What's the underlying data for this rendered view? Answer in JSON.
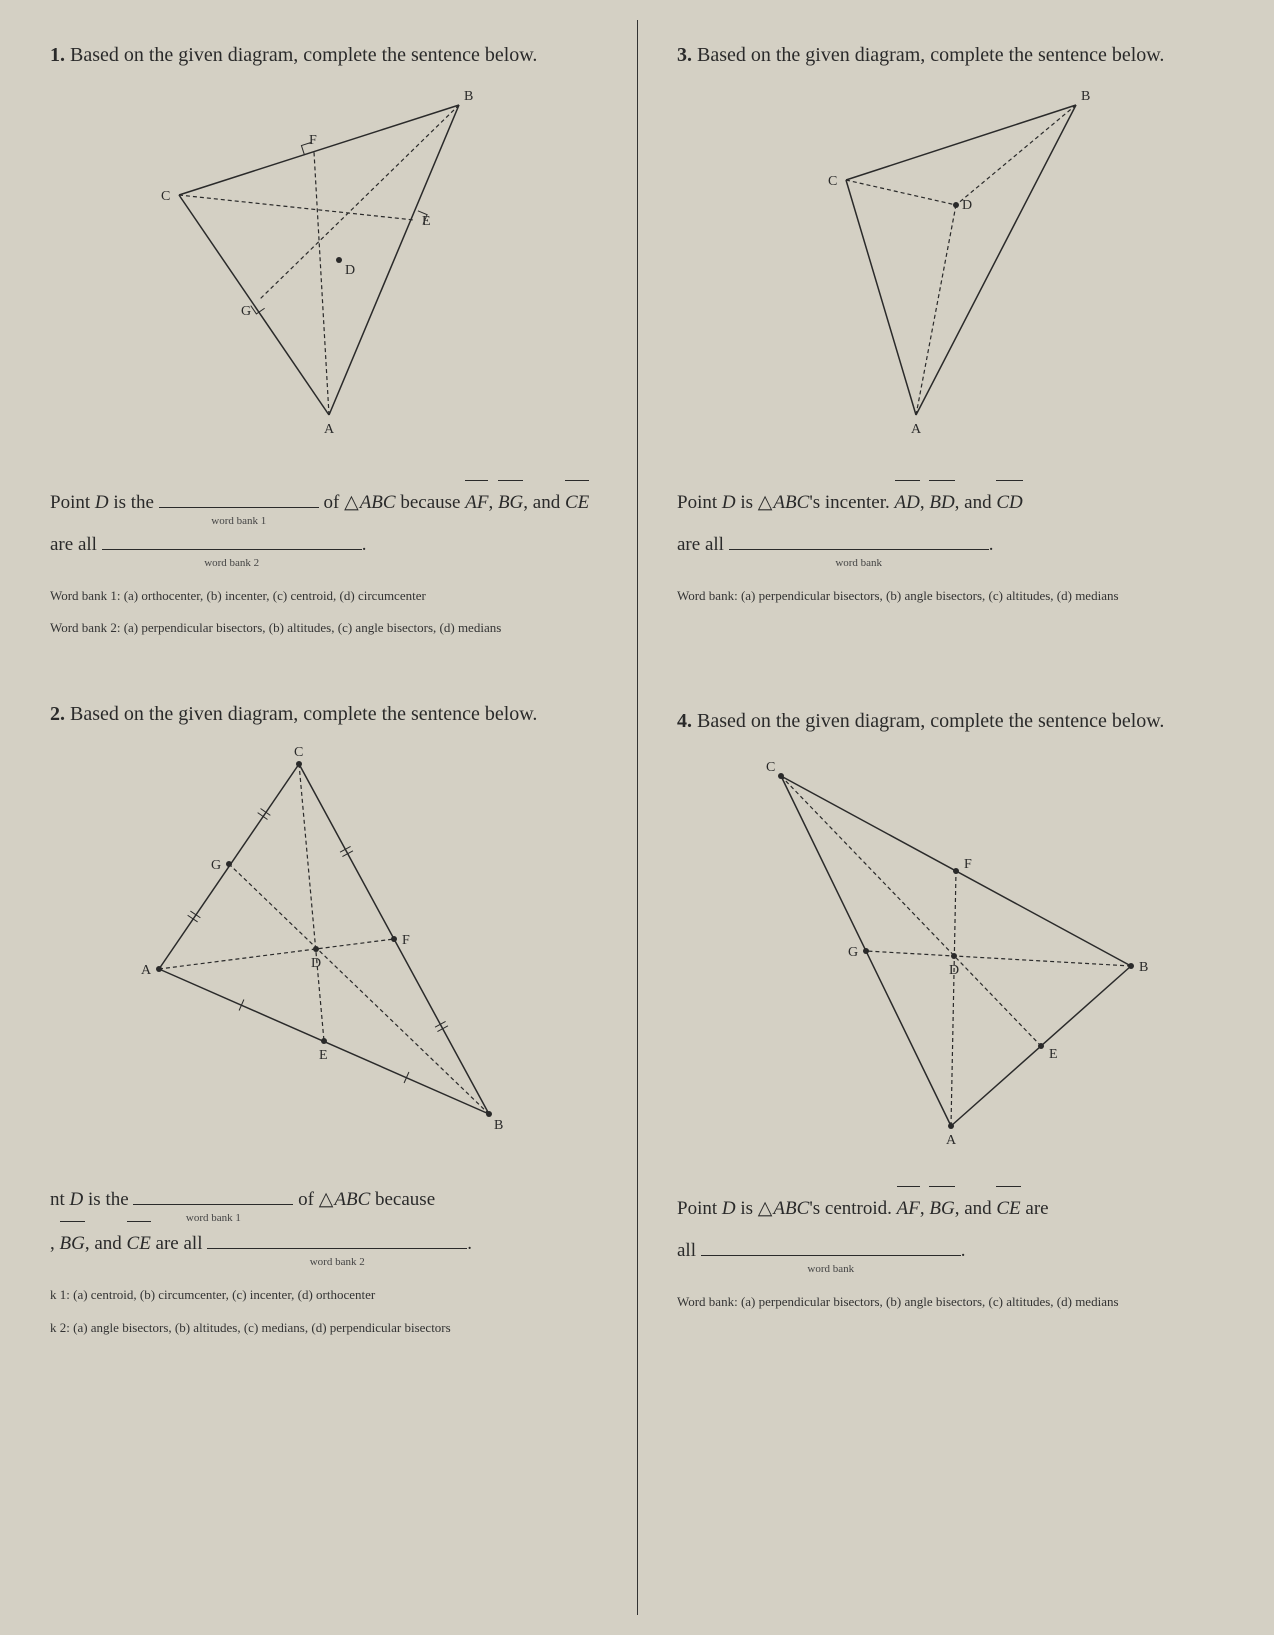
{
  "problems": {
    "p1": {
      "number": "1.",
      "prompt": "Based on the given diagram, complete the sentence below.",
      "sentence_part1": "Point ",
      "point": "D",
      "sentence_part2": " is the ",
      "blank1_label": "word bank 1",
      "sentence_part3": " of ",
      "triangle": "ABC",
      "sentence_part4": " because ",
      "seg1": "AF",
      "seg2": "BG",
      "seg3": "CE",
      "sentence_part5": ", and ",
      "sentence_part6": " are all ",
      "blank2_label": "word bank 2",
      "wb1": "Word bank 1: (a) orthocenter,  (b) incenter,  (c) centroid,  (d) circumcenter",
      "wb2": "Word bank 2: (a) perpendicular bisectors,  (b) altitudes,  (c) angle bisectors,  (d) medians",
      "diagram": {
        "vertices": {
          "A": [
            180,
            330
          ],
          "B": [
            310,
            20
          ],
          "C": [
            30,
            110
          ]
        },
        "feet": {
          "F": [
            165,
            67
          ],
          "G": [
            110,
            215
          ],
          "E": [
            265,
            135
          ]
        },
        "centroid": [
          190,
          175
        ],
        "labels": {
          "A": "A",
          "B": "B",
          "C": "C",
          "F": "F",
          "G": "G",
          "E": "E",
          "D": "D"
        },
        "stroke": "#2a2a2a"
      }
    },
    "p2": {
      "number": "2.",
      "prompt": "Based on the given diagram, complete the sentence below.",
      "sentence_part1_prefix": "nt ",
      "point": "D",
      "sentence_part2": " is the ",
      "blank1_label": "word bank 1",
      "sentence_part3": " of ",
      "triangle": "ABC",
      "sentence_part4": " because ",
      "seg2": "BG",
      "seg3": "CE",
      "sentence_part5": ", and ",
      "sentence_part6": " are all ",
      "blank2_label": "word bank 2",
      "wb1": "k 1: (a) centroid,  (b) circumcenter,  (c) incenter,  (d) orthocenter",
      "wb2": "k 2: (a) angle bisectors,  (b) altitudes,  (c) medians,  (d) perpendicular bisectors",
      "diagram": {
        "vertices": {
          "A": [
            20,
            225
          ],
          "B": [
            350,
            370
          ],
          "C": [
            160,
            20
          ]
        },
        "mids": {
          "G": [
            90,
            120
          ],
          "E": [
            185,
            297
          ],
          "F": [
            255,
            195
          ]
        },
        "centroid": [
          177,
          205
        ],
        "labels": {
          "A": "A",
          "B": "B",
          "C": "C",
          "G": "G",
          "E": "E",
          "F": "F",
          "D": "D"
        },
        "stroke": "#2a2a2a"
      }
    },
    "p3": {
      "number": "3.",
      "prompt": "Based on the given diagram, complete the sentence below.",
      "sentence_part1": "Point ",
      "point": "D",
      "sentence_part2": " is ",
      "triangle": "ABC",
      "possessive": "'s incenter. ",
      "seg1": "AD",
      "seg2": "BD",
      "seg3": "CD",
      "sentence_part5": ", and ",
      "sentence_part6": " are all ",
      "blank_label": "word bank",
      "wb": "Word bank: (a) perpendicular bisectors,  (b) angle bisectors,  (c) altitudes,  (d) medians",
      "diagram": {
        "vertices": {
          "A": [
            130,
            330
          ],
          "B": [
            290,
            20
          ],
          "C": [
            60,
            95
          ]
        },
        "incenter": [
          170,
          120
        ],
        "labels": {
          "A": "A",
          "B": "B",
          "C": "C",
          "D": "D"
        },
        "stroke": "#2a2a2a"
      }
    },
    "p4": {
      "number": "4.",
      "prompt": "Based on the given diagram, complete the sentence below.",
      "sentence_part1": "Point ",
      "point": "D",
      "sentence_part2": " is ",
      "triangle": "ABC",
      "possessive": "'s centroid. ",
      "seg1": "AF",
      "seg2": "BG",
      "seg3": "CE",
      "sentence_part5": ", and ",
      "tail": " are",
      "sentence_part6": "all ",
      "blank_label": "word bank",
      "wb": "Word bank: (a) perpendicular bisectors,  (b) angle bisectors,  (c) altitudes,  (d) medians",
      "diagram": {
        "vertices": {
          "A": [
            205,
            375
          ],
          "B": [
            385,
            215
          ],
          "C": [
            35,
            25
          ]
        },
        "mids": {
          "G": [
            120,
            200
          ],
          "E": [
            295,
            295
          ],
          "F": [
            210,
            120
          ]
        },
        "centroid": [
          208,
          205
        ],
        "labels": {
          "A": "A",
          "B": "B",
          "C": "C",
          "G": "G",
          "E": "E",
          "F": "F",
          "D": "D"
        },
        "stroke": "#2a2a2a"
      }
    }
  }
}
